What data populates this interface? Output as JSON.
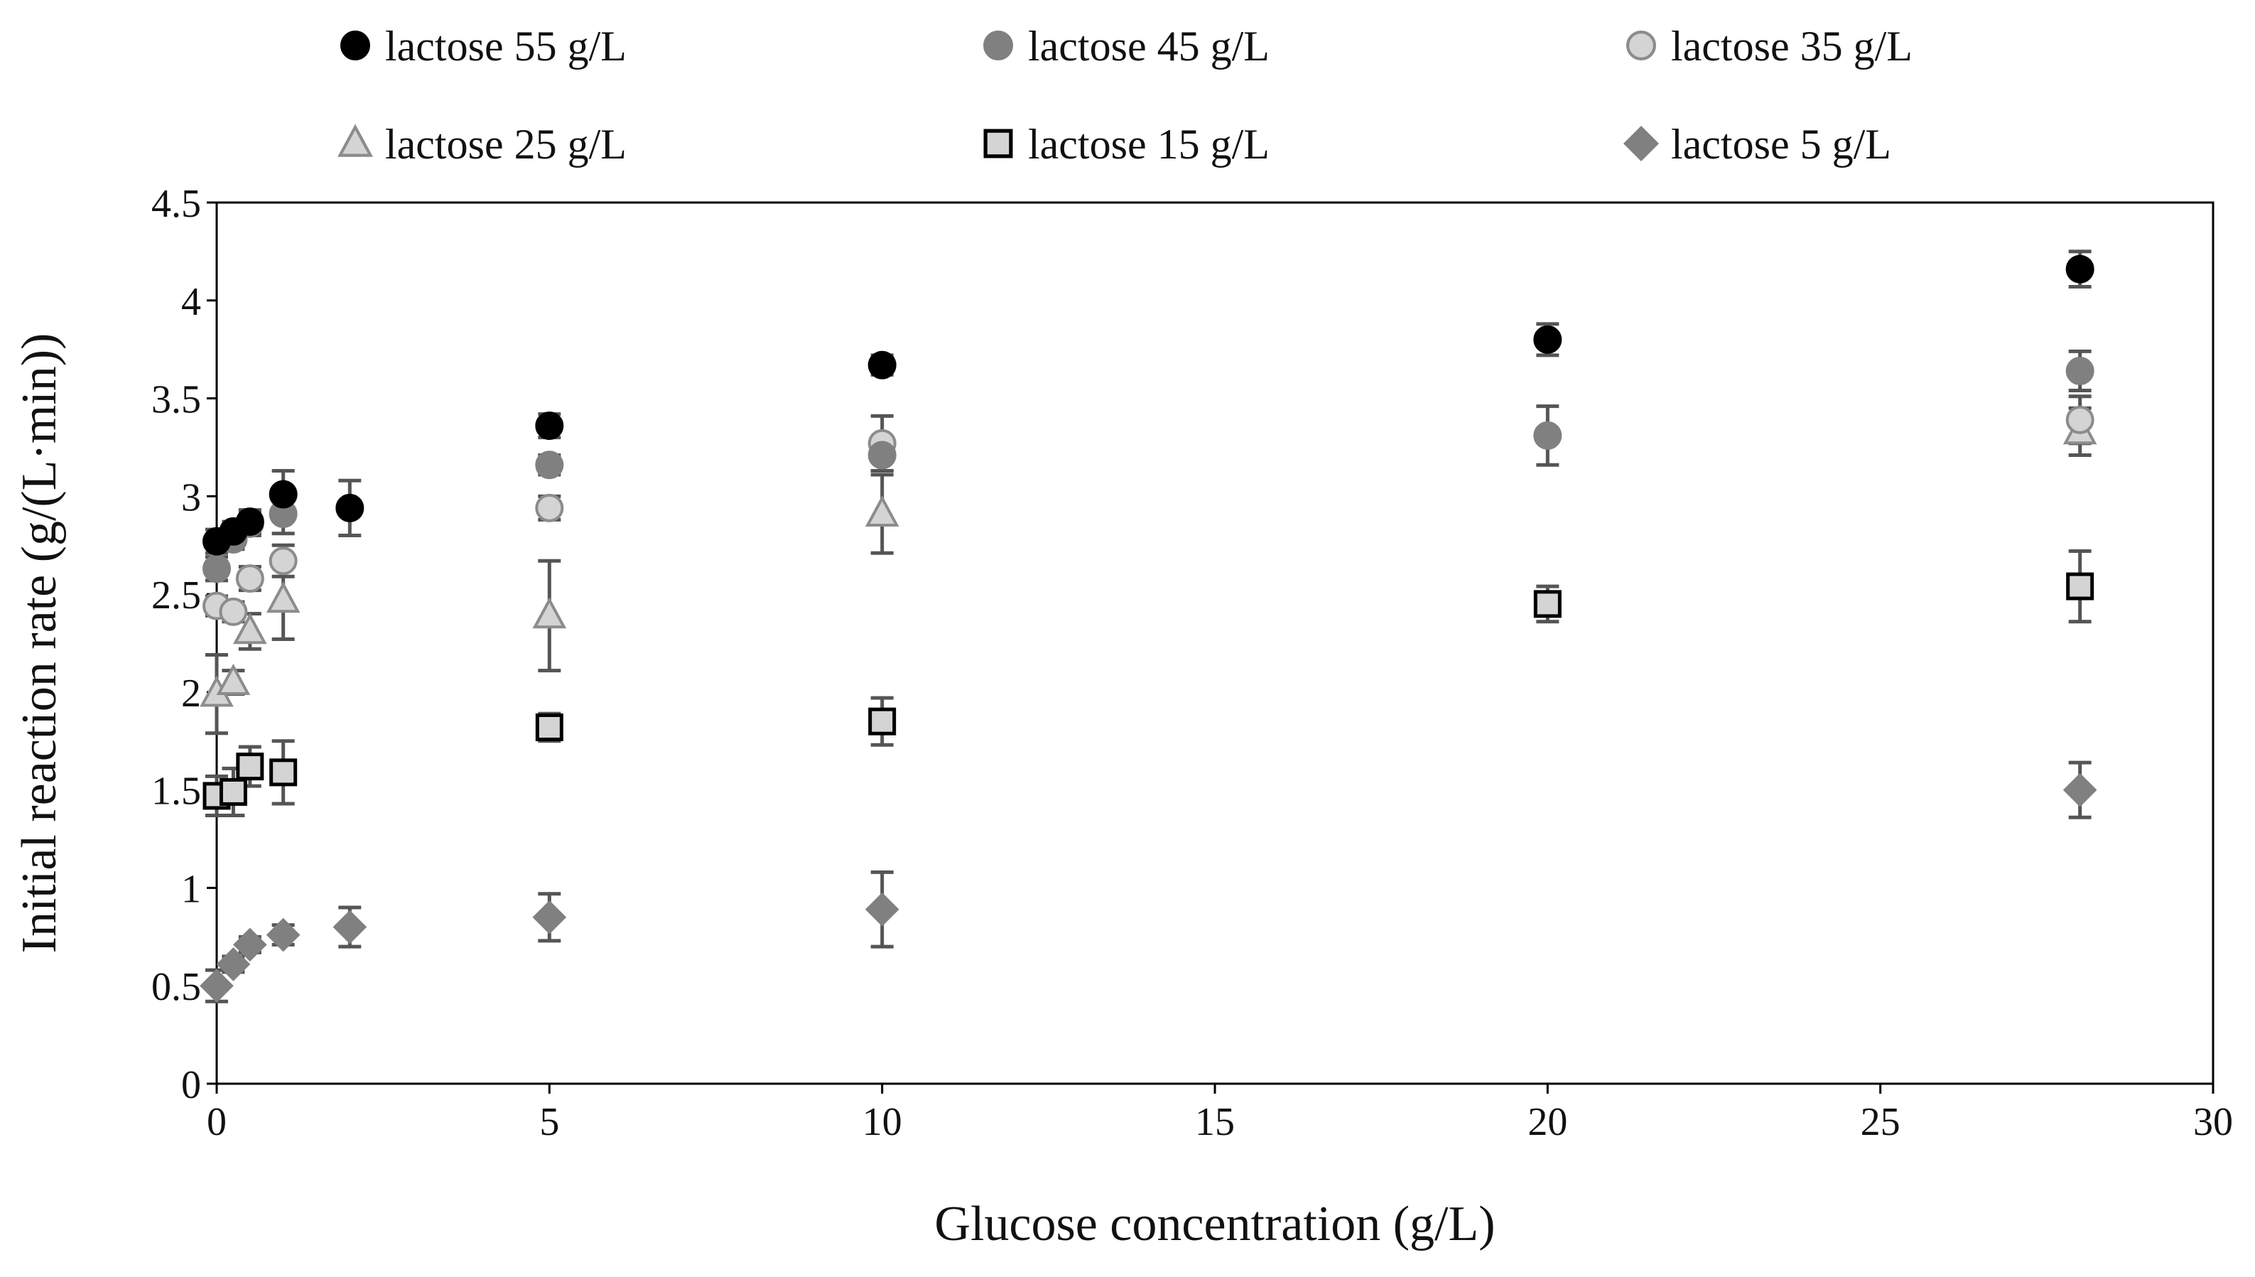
{
  "chart_data": {
    "type": "scatter",
    "title": "",
    "xlabel": "Glucose concentration (g/L)",
    "ylabel": "Initial reaction rate (g/(L·min))",
    "xlim": [
      0,
      30
    ],
    "ylim": [
      0,
      4.5
    ],
    "xticks": [
      0,
      5,
      10,
      15,
      20,
      25,
      30
    ],
    "yticks": [
      0,
      0.5,
      1,
      1.5,
      2,
      2.5,
      3,
      3.5,
      4,
      4.5
    ],
    "xtick_labels": [
      "0",
      "5",
      "10",
      "15",
      "20",
      "25",
      "30"
    ],
    "ytick_labels": [
      "0",
      "0.5",
      "1",
      "1.5",
      "2",
      "2.5",
      "3",
      "3.5",
      "4",
      "4.5"
    ],
    "grid": false,
    "legend_position": "top",
    "series": [
      {
        "name": "lactose 55 g/L",
        "marker": "circle",
        "fill": "#000000",
        "stroke": "#000000",
        "x": [
          0,
          0.25,
          0.5,
          1,
          2,
          5,
          10,
          20,
          28
        ],
        "y": [
          2.77,
          2.82,
          2.87,
          3.01,
          2.94,
          3.36,
          3.67,
          3.8,
          4.16
        ],
        "error": [
          0.06,
          0.05,
          0.06,
          0.12,
          0.14,
          0.06,
          0.05,
          0.08,
          0.09
        ]
      },
      {
        "name": "lactose 45 g/L",
        "marker": "circle",
        "fill": "#808080",
        "stroke": "#808080",
        "x": [
          0,
          0.25,
          0.5,
          1,
          5,
          10,
          20,
          28
        ],
        "y": [
          2.63,
          2.78,
          2.86,
          2.91,
          3.16,
          3.21,
          3.31,
          3.64
        ],
        "error": [
          0.06,
          0.05,
          0.06,
          0.1,
          0.05,
          0.08,
          0.15,
          0.1
        ]
      },
      {
        "name": "lactose 35 g/L",
        "marker": "circle",
        "fill": "#d4d4d4",
        "stroke": "#8c8c8c",
        "x": [
          0,
          0.25,
          0.5,
          1,
          5,
          10,
          28
        ],
        "y": [
          2.44,
          2.41,
          2.58,
          2.67,
          2.94,
          3.27,
          3.39
        ],
        "error": [
          0.05,
          0.05,
          0.06,
          0.08,
          0.06,
          0.14,
          0.12
        ]
      },
      {
        "name": "lactose 25 g/L",
        "marker": "triangle",
        "fill": "#d4d4d4",
        "stroke": "#8c8c8c",
        "x": [
          0,
          0.25,
          0.5,
          1,
          5,
          10,
          28
        ],
        "y": [
          1.99,
          2.05,
          2.31,
          2.47,
          2.39,
          2.91,
          3.33
        ],
        "error": [
          0.2,
          0.06,
          0.09,
          0.2,
          0.28,
          0.2,
          0.12
        ]
      },
      {
        "name": "lactose 15 g/L",
        "marker": "square",
        "fill": "#d4d4d4",
        "stroke": "#000000",
        "x": [
          0,
          0.25,
          0.5,
          1,
          5,
          10,
          20,
          28
        ],
        "y": [
          1.47,
          1.49,
          1.62,
          1.59,
          1.82,
          1.85,
          2.45,
          2.54
        ],
        "error": [
          0.1,
          0.12,
          0.1,
          0.16,
          0.07,
          0.12,
          0.09,
          0.18
        ]
      },
      {
        "name": "lactose 5 g/L",
        "marker": "diamond",
        "fill": "#808080",
        "stroke": "#808080",
        "x": [
          0,
          0.25,
          0.5,
          1,
          2,
          5,
          10,
          28
        ],
        "y": [
          0.5,
          0.61,
          0.71,
          0.76,
          0.8,
          0.85,
          0.89,
          1.5
        ],
        "error": [
          0.08,
          0.04,
          0.04,
          0.05,
          0.1,
          0.12,
          0.19,
          0.14
        ]
      }
    ]
  }
}
